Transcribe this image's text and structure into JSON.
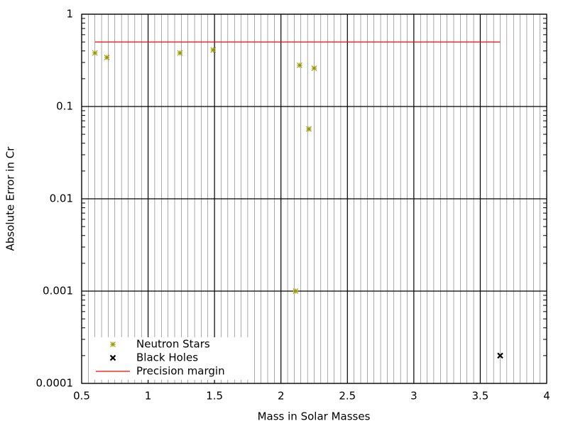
{
  "chart_data": {
    "type": "scatter",
    "x_label": "Mass in Solar Masses",
    "y_label": "Absolute Error in Cr",
    "xlim": [
      0.5,
      4
    ],
    "xticks": [
      0.5,
      1,
      1.5,
      2,
      2.5,
      3,
      3.5,
      4
    ],
    "ylim": [
      0.0001,
      1
    ],
    "yticks": [
      0.0001,
      0.001,
      0.01,
      0.1,
      1
    ],
    "ylog": true,
    "grid": true,
    "legend": "bottom-left",
    "series": [
      {
        "name": "Neutron Stars",
        "color": "#999900",
        "mode": "markers",
        "x": [
          0.6,
          0.69,
          1.24,
          1.49,
          2.14,
          2.25,
          2.21,
          2.11
        ],
        "values": [
          0.38,
          0.34,
          0.38,
          0.41,
          0.28,
          0.26,
          0.057,
          0.001
        ]
      },
      {
        "name": "Black Holes",
        "color": "#000000",
        "mode": "markers",
        "x": [
          3.65
        ],
        "values": [
          0.0002
        ]
      },
      {
        "name": "Precision margin",
        "color": "#ff0000",
        "mode": "line",
        "x": [
          0.6,
          3.65
        ],
        "values": [
          0.5,
          0.5
        ]
      }
    ]
  }
}
